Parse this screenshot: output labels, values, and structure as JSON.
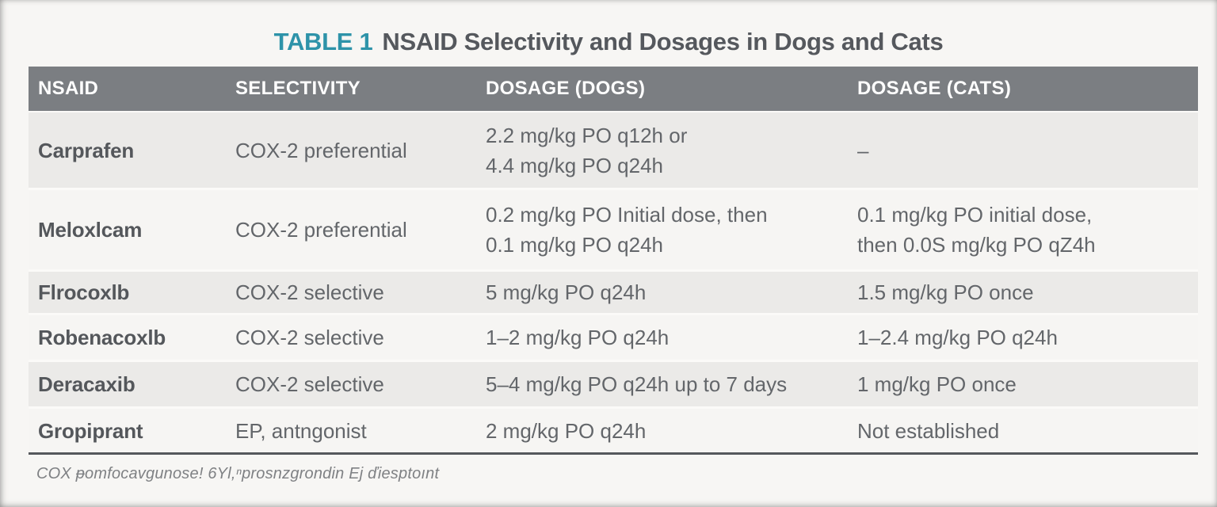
{
  "title": {
    "label": "TABLE 1",
    "text": "NSAID Selectivity and Dosages in Dogs and Cats"
  },
  "colors": {
    "accent_teal": "#2e93a9",
    "header_bg": "#7b7e82",
    "row_alt_bg": "#ebeae8",
    "page_bg": "#f7f6f4",
    "rule": "#55585c",
    "title_text": "#55585d",
    "cell_text": "#63666a"
  },
  "table": {
    "columns": [
      "NSAID",
      "SELECTIVITY",
      "DOSAGE (DOGS)",
      "DOSAGE (CATS)"
    ],
    "rows": [
      {
        "name": "Carprafen",
        "selectivity": "COX-2 preferential",
        "dogs": "2.2 mg/kg PO q12h or\n4.4 mg/kg PO q24h",
        "cats": "–"
      },
      {
        "name": "Meloxlcam",
        "selectivity": "COX-2 preferential",
        "dogs": "0.2 mg/kg PO Initial dose, then\n0.1 mg/kg PO q24h",
        "cats": "0.1 mg/kg PO initial dose,\nthen 0.0S mg/kg PO qZ4h"
      },
      {
        "name": "Flrocoxlb",
        "selectivity": "COX-2 selective",
        "dogs": "5 mg/kg PO q24h",
        "cats": "1.5 mg/kg PO once"
      },
      {
        "name": "Robenacoxlb",
        "selectivity": "COX-2 selective",
        "dogs": "1–2 mg/kg PO q24h",
        "cats": "1–2.4 mg/kg PO q24h"
      },
      {
        "name": "Deracaxib",
        "selectivity": "COX-2 selective",
        "dogs": "5–4 mg/kg PO q24h up to 7 days",
        "cats": "1 mg/kg PO once"
      },
      {
        "name": "Gropiprant",
        "selectivity": "EP, antngonist",
        "dogs": "2 mg/kg PO q24h",
        "cats": "Not established"
      }
    ]
  },
  "footnote": "COX ᵽomfocavgunose! 6Yl,ⁿprosnzgrondin Ej ďiesptoınt"
}
